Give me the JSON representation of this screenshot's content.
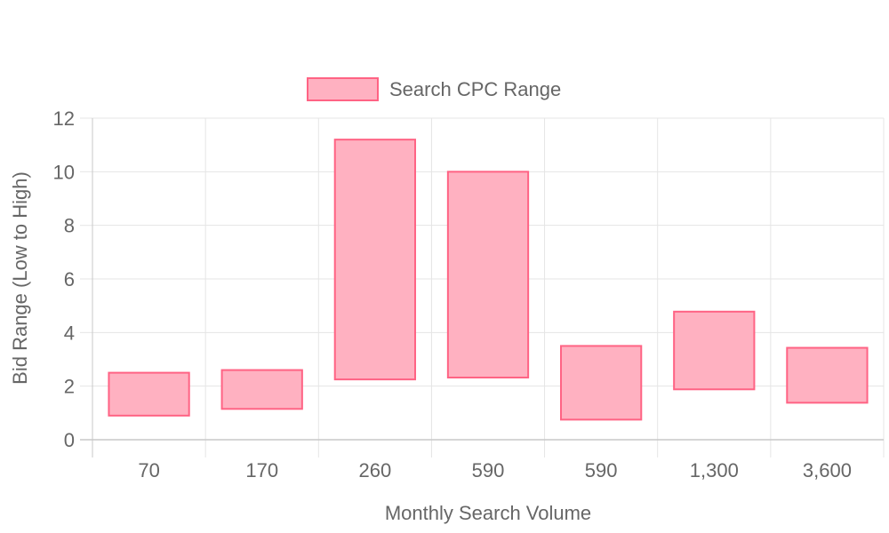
{
  "chart_data": {
    "type": "bar",
    "title": "",
    "xlabel": "Monthly Search Volume",
    "ylabel": "Bid Range (Low to High)",
    "categories": [
      "70",
      "170",
      "260",
      "590",
      "590",
      "1,300",
      "3,600"
    ],
    "series": [
      {
        "name": "Search CPC Range",
        "ranges": [
          [
            0.9,
            2.5
          ],
          [
            1.15,
            2.6
          ],
          [
            2.25,
            11.2
          ],
          [
            2.32,
            10.0
          ],
          [
            0.75,
            3.5
          ],
          [
            1.88,
            4.78
          ],
          [
            1.38,
            3.43
          ]
        ],
        "fill": "#ffb1c1",
        "stroke": "#ff6384"
      }
    ],
    "ylim": [
      0,
      12
    ],
    "yticks": [
      0,
      2,
      4,
      6,
      8,
      10,
      12
    ],
    "grid": true,
    "legend_position": "top"
  },
  "colors": {
    "grid": "#e5e5e5",
    "axis": "#c8c8c8",
    "text": "#666666"
  }
}
